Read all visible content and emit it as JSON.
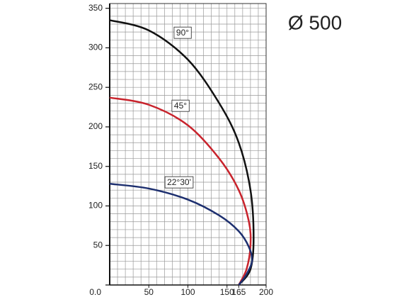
{
  "chart_data": {
    "type": "line",
    "title": "Ø 500",
    "xlim": [
      0,
      200
    ],
    "ylim": [
      0,
      356
    ],
    "xticks": [
      50,
      100,
      150,
      165,
      200
    ],
    "yticks": [
      {
        "value": 0,
        "label": "0.0"
      },
      50,
      100,
      150,
      200,
      250,
      300,
      350
    ],
    "grid": true,
    "series": [
      {
        "name": "90°",
        "color": "#111111",
        "x": [
          0,
          50,
          100,
          140,
          165,
          180,
          184,
          180,
          165
        ],
        "values": [
          335,
          322,
          285,
          230,
          180,
          120,
          60,
          20,
          0
        ]
      },
      {
        "name": "45°",
        "color": "#c8232c",
        "x": [
          0,
          50,
          100,
          140,
          165,
          178,
          180,
          175,
          165
        ],
        "values": [
          237,
          228,
          202,
          160,
          120,
          80,
          50,
          20,
          0
        ]
      },
      {
        "name": "22°30'",
        "color": "#1d2f6f",
        "x": [
          0,
          50,
          100,
          140,
          165,
          178,
          182,
          174,
          165
        ],
        "values": [
          128,
          122,
          108,
          88,
          68,
          48,
          30,
          12,
          0
        ]
      }
    ]
  }
}
